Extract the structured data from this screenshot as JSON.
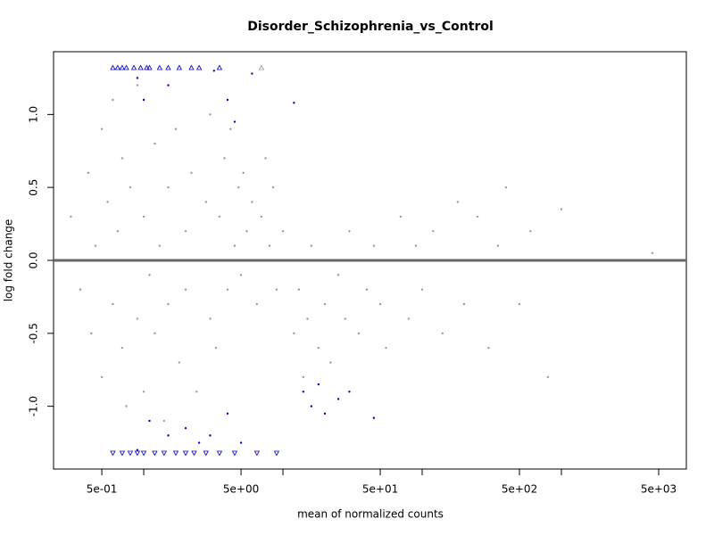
{
  "chart_data": {
    "type": "scatter",
    "title": "Disorder_Schizophrenia_vs_Control",
    "x_label": "mean of normalized counts",
    "y_label": "log fold change",
    "xscale": "log",
    "xlim": [
      0.225,
      7900
    ],
    "ylim": [
      -1.43,
      1.43
    ],
    "xticks": [
      {
        "value": 0.5,
        "label": "5e-01"
      },
      {
        "value": 5,
        "label": "5e+00"
      },
      {
        "value": 50,
        "label": "5e+01"
      },
      {
        "value": 500,
        "label": "5e+02"
      },
      {
        "value": 5000,
        "label": "5e+03"
      }
    ],
    "xminor_ticks": [
      1,
      10,
      100,
      1000
    ],
    "yticks": [
      {
        "value": -1,
        "label": "-1.0"
      },
      -0.5,
      {
        "value": 0,
        "label": "0.0"
      },
      0.5,
      {
        "value": 1,
        "label": "1.0"
      }
    ],
    "hline": 0,
    "hline_color": "#666666",
    "series": [
      {
        "color": "#999999",
        "marker": "dot",
        "x": [
          0.3,
          0.35,
          0.4,
          0.42,
          0.45,
          0.5,
          0.5,
          0.55,
          0.6,
          0.6,
          0.65,
          0.7,
          0.7,
          0.75,
          0.8,
          0.8,
          0.9,
          0.9,
          1.0,
          1.0,
          1.1,
          1.2,
          1.2,
          1.3,
          1.4,
          1.5,
          1.5,
          1.7,
          1.8,
          2.0,
          2.0,
          2.2,
          2.4,
          2.5,
          2.8,
          3.0,
          3.0,
          3.3,
          3.5,
          3.8,
          4.0,
          4.2,
          4.5,
          4.8,
          5.0,
          5.2,
          5.5,
          6.0,
          6.5,
          7.0,
          7.5,
          8.0,
          8.5,
          9.0,
          10,
          12,
          13,
          14,
          15,
          16,
          18,
          20,
          22,
          25,
          28,
          30,
          35,
          40,
          45,
          50,
          55,
          60,
          70,
          80,
          90,
          100,
          120,
          140,
          160,
          180,
          200,
          250,
          300,
          350,
          400,
          500,
          600,
          800,
          1000,
          4500
        ],
        "values": [
          0.3,
          -0.2,
          0.6,
          -0.5,
          0.1,
          0.9,
          -0.8,
          0.4,
          -0.3,
          1.1,
          0.2,
          -0.6,
          0.7,
          -1.0,
          0.0,
          0.5,
          -0.4,
          1.2,
          0.3,
          -0.9,
          -0.1,
          0.8,
          -0.5,
          0.1,
          -1.1,
          0.5,
          -0.3,
          0.9,
          -0.7,
          0.2,
          -0.2,
          0.6,
          -0.9,
          0.0,
          0.4,
          -0.4,
          1.0,
          -0.6,
          0.3,
          0.7,
          -0.2,
          0.9,
          0.1,
          0.5,
          -0.1,
          0.6,
          0.2,
          0.4,
          -0.3,
          0.3,
          0.7,
          0.1,
          0.5,
          -0.2,
          0.2,
          -0.5,
          -0.2,
          -0.8,
          -0.4,
          0.1,
          -0.6,
          -0.3,
          -0.7,
          -0.1,
          -0.4,
          0.2,
          -0.5,
          -0.2,
          0.1,
          -0.3,
          -0.6,
          0.0,
          0.3,
          -0.4,
          0.1,
          -0.2,
          0.2,
          -0.5,
          0.0,
          0.4,
          -0.3,
          0.3,
          -0.6,
          0.1,
          0.5,
          -0.3,
          0.2,
          -0.8,
          0.35,
          0.05
        ]
      },
      {
        "color": "#0000cc",
        "marker": "dot",
        "x": [
          0.9,
          1.0,
          1.5,
          3.2,
          4.0,
          4.5,
          6.0,
          12,
          14,
          16,
          18,
          20,
          25,
          30,
          45,
          1.1,
          1.5,
          2.0,
          2.5,
          3.0,
          4.0,
          5.0,
          0.9
        ],
        "values": [
          1.25,
          1.1,
          1.2,
          1.3,
          1.1,
          0.95,
          1.28,
          1.08,
          -0.9,
          -1.0,
          -0.85,
          -1.05,
          -0.95,
          -0.9,
          -1.08,
          -1.1,
          -1.2,
          -1.15,
          -1.25,
          -1.2,
          -1.05,
          -1.25,
          -1.3
        ]
      },
      {
        "color": "#0000cc",
        "marker": "triangle-up",
        "x": [
          0.6,
          0.65,
          0.7,
          0.75,
          0.85,
          0.95,
          1.05,
          1.1,
          1.3,
          1.5,
          1.8,
          2.2,
          2.5,
          3.5
        ],
        "values": [
          1.32,
          1.32,
          1.32,
          1.32,
          1.32,
          1.32,
          1.32,
          1.32,
          1.32,
          1.32,
          1.32,
          1.32,
          1.32,
          1.32
        ]
      },
      {
        "color": "#999999",
        "marker": "triangle-up",
        "x": [
          7.0
        ],
        "values": [
          1.32
        ]
      },
      {
        "color": "#0000cc",
        "marker": "triangle-down",
        "x": [
          0.6,
          0.7,
          0.8,
          0.9,
          1.0,
          1.2,
          1.4,
          1.7,
          2.0,
          2.3,
          2.8,
          3.5,
          4.5,
          6.5,
          9.0
        ],
        "values": [
          -1.32,
          -1.32,
          -1.32,
          -1.32,
          -1.32,
          -1.32,
          -1.32,
          -1.32,
          -1.32,
          -1.32,
          -1.32,
          -1.32,
          -1.32,
          -1.32,
          -1.32
        ]
      }
    ]
  }
}
